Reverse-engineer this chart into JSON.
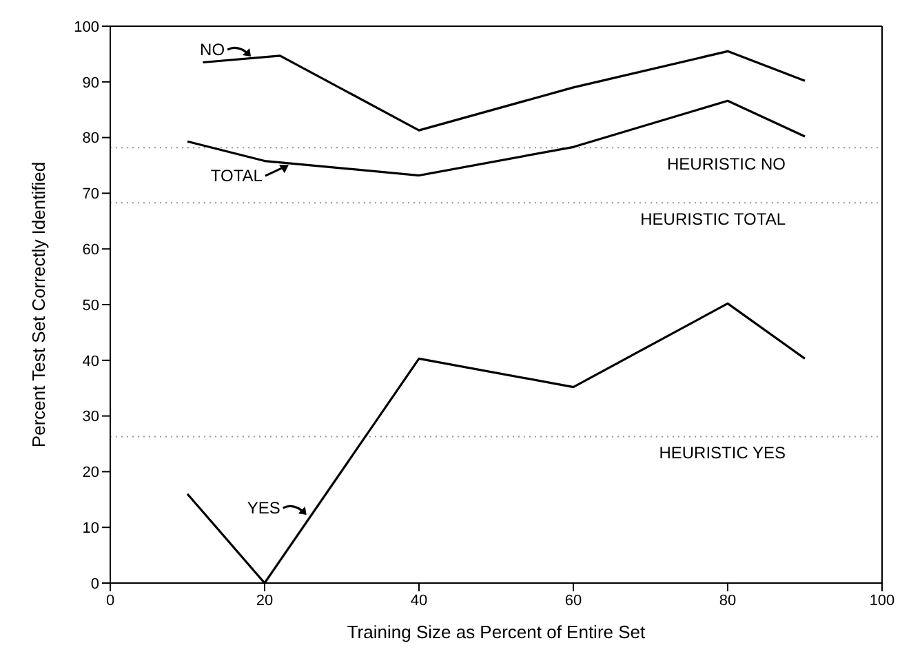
{
  "chart_data": {
    "type": "line",
    "xlabel": "Training Size as Percent of Entire Set",
    "ylabel": "Percent Test Set Correctly Identified",
    "series": [
      {
        "color": "#000000",
        "x": [
          12,
          22,
          40,
          60,
          80,
          90
        ],
        "values": [
          93.5,
          94.7,
          81.3,
          89,
          95.5,
          90.2
        ]
      },
      {
        "color": "#000000",
        "x": [
          10,
          20,
          40,
          60,
          80,
          90
        ],
        "values": [
          79.3,
          75.8,
          73.2,
          78.3,
          86.6,
          80.2
        ]
      },
      {
        "color": "#000000",
        "x": [
          10,
          20,
          40,
          60,
          80,
          90
        ],
        "values": [
          16,
          0,
          40.3,
          35.2,
          50.2,
          40.3
        ]
      }
    ],
    "xlim": [
      0,
      100
    ],
    "xticks": [
      0,
      20,
      40,
      60,
      80,
      100
    ],
    "ylim": [
      0,
      100
    ],
    "yticks": [
      0,
      10,
      20,
      30,
      40,
      50,
      60,
      70,
      80,
      90,
      100
    ],
    "grid": false,
    "marker": "none",
    "line_style": "solid",
    "ref_lines": [
      {
        "axis": "y",
        "value": 78.2,
        "label": "HEURISTIC NO",
        "color": "#999999",
        "line_style": "dotted"
      },
      {
        "axis": "y",
        "value": 68.3,
        "label": "HEURISTIC TOTAL",
        "color": "#999999",
        "line_style": "dotted"
      },
      {
        "axis": "y",
        "value": 26.3,
        "label": "HEURISTIC YES",
        "color": "#999999",
        "line_style": "dotted"
      }
    ],
    "annotations": [
      {
        "text": "NO",
        "x": 18.4,
        "y": 94.3
      },
      {
        "text": "TOTAL",
        "x": 23.3,
        "y": 75.6
      },
      {
        "text": "YES",
        "x": 25.6,
        "y": 12
      }
    ]
  }
}
